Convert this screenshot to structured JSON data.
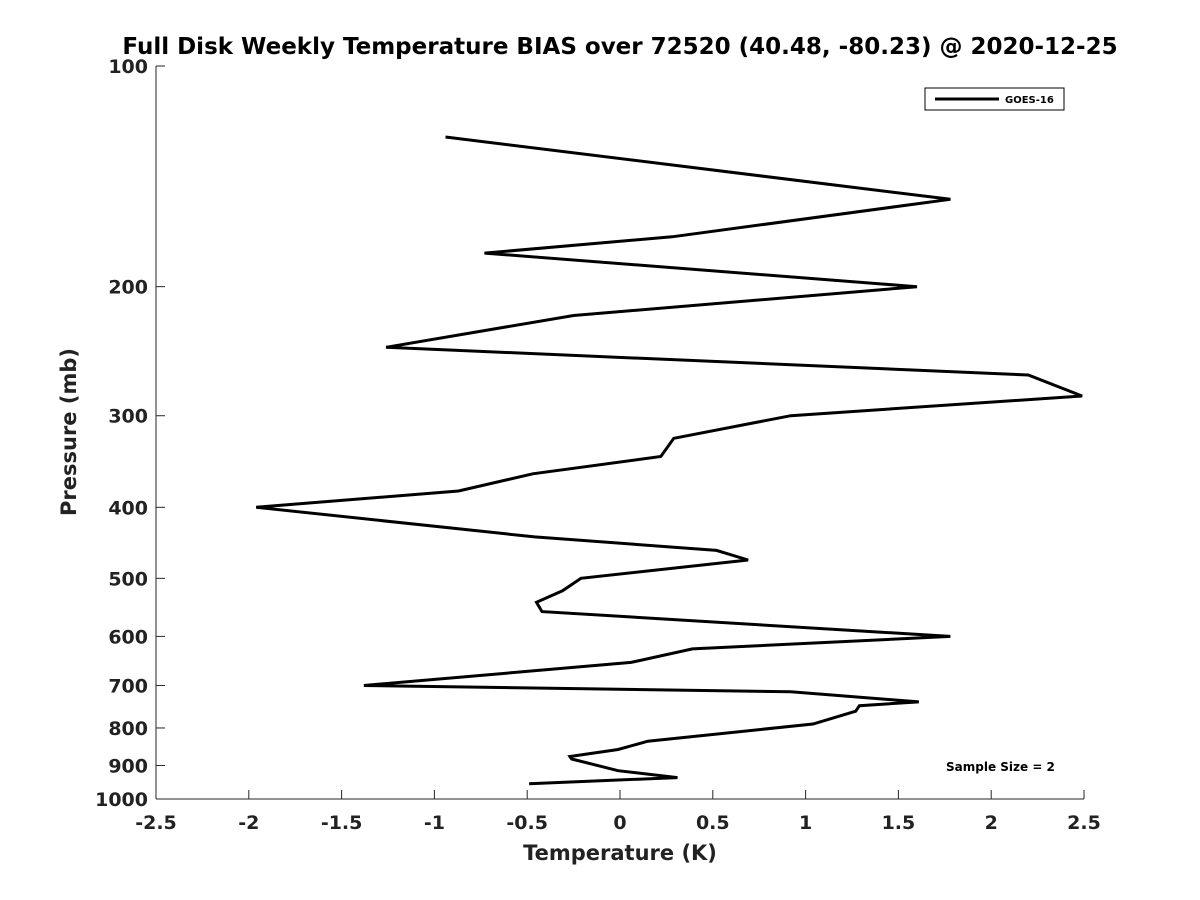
{
  "chart_data": {
    "type": "line",
    "title": "Full Disk Weekly Temperature BIAS over 72520 (40.48, -80.23) @ 2020-12-25",
    "xlabel": "Temperature (K)",
    "ylabel": "Pressure (mb)",
    "xlim": [
      -2.5,
      2.5
    ],
    "ylim": [
      1000,
      100
    ],
    "yscale": "log",
    "x_ticks": [
      -2.5,
      -2,
      -1.5,
      -1,
      -0.5,
      0,
      0.5,
      1,
      1.5,
      2,
      2.5
    ],
    "x_tick_labels": [
      "-2.5",
      "-2",
      "-1.5",
      "-1",
      "-0.5",
      "0",
      "0.5",
      "1",
      "1.5",
      "2",
      "2.5"
    ],
    "y_ticks": [
      100,
      200,
      300,
      400,
      500,
      600,
      700,
      800,
      900,
      1000
    ],
    "y_tick_labels": [
      "100",
      "200",
      "300",
      "400",
      "500",
      "600",
      "700",
      "800",
      "900",
      "1000"
    ],
    "grid": false,
    "legend_position": "top-right",
    "annotation": "Sample Size = 2",
    "series": [
      {
        "name": "GOES-16",
        "color": "#000000",
        "x": [
          -0.94,
          1.78,
          0.28,
          -0.73,
          1.6,
          -0.25,
          -1.26,
          2.2,
          2.49,
          0.92,
          0.29,
          0.22,
          -0.47,
          -0.87,
          -1.96,
          -0.46,
          0.52,
          0.69,
          -0.21,
          -0.31,
          -0.45,
          -0.42,
          1.78,
          0.39,
          0.06,
          -1.38,
          0.92,
          1.61,
          1.29,
          1.27,
          1.04,
          0.15,
          -0.01,
          -0.27,
          -0.26,
          -0.01,
          0.31,
          -0.49
        ],
        "y": [
          125,
          152,
          171,
          180,
          200,
          219,
          242,
          264,
          282,
          300,
          322,
          341,
          360,
          380,
          400,
          439,
          458,
          472,
          500,
          520,
          539,
          555,
          600,
          624,
          651,
          700,
          714,
          737,
          746,
          759,
          790,
          834,
          856,
          875,
          882,
          915,
          935,
          953
        ]
      }
    ]
  }
}
